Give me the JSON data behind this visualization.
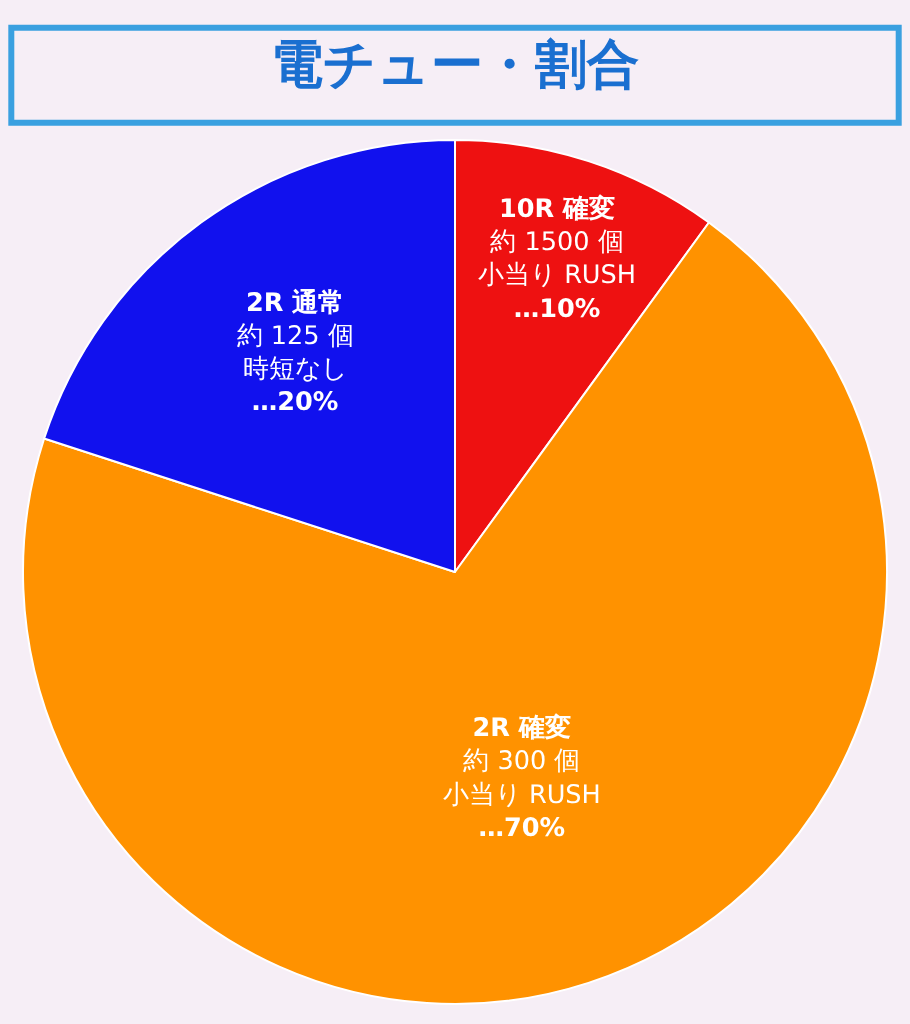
{
  "chart_data": {
    "type": "pie",
    "title": "電チュー・割合",
    "categories": [
      "10R 確変",
      "2R 確変",
      "2R 通常"
    ],
    "values": [
      10,
      70,
      20
    ],
    "colors": [
      "#ee1111",
      "#ff9200",
      "#1111ee"
    ],
    "value_labels": [
      "…10%",
      "…70%",
      "…20%"
    ],
    "annotations": [
      {
        "text": "約 1500 個",
        "x": "10R 確変"
      },
      {
        "text": "小当り RUSH",
        "x": "10R 確変"
      },
      {
        "text": "約 300 個",
        "x": "2R 確変"
      },
      {
        "text": "小当り RUSH",
        "x": "2R 確変"
      },
      {
        "text": "約 125 個",
        "x": "2R 通常"
      },
      {
        "text": "時短なし",
        "x": "2R 通常"
      }
    ],
    "legend": false
  }
}
